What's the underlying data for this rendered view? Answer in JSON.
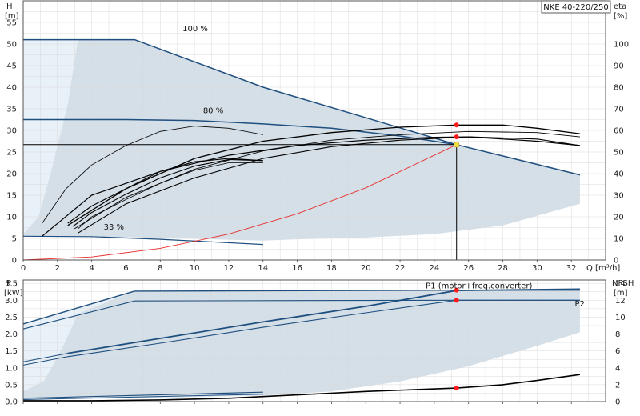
{
  "chart_data": [
    {
      "type": "line",
      "title": "NKE 40-220/250",
      "xlabel": "Q [m³/h]",
      "ylabel_left": [
        "H",
        "[m]"
      ],
      "ylabel_right": [
        "eta",
        "[%]"
      ],
      "xlim": [
        0,
        34
      ],
      "ylim_left": [
        0,
        60
      ],
      "ylim_right": [
        0,
        120
      ],
      "x_ticks": [
        0,
        2,
        4,
        6,
        8,
        10,
        12,
        14,
        16,
        18,
        20,
        22,
        24,
        26,
        28,
        30,
        32
      ],
      "y_ticks_left": [
        0,
        5,
        10,
        15,
        20,
        25,
        30,
        35,
        40,
        45,
        50,
        55
      ],
      "y_ticks_right": [
        0,
        10,
        20,
        30,
        40,
        50,
        60,
        70,
        80,
        90,
        100
      ],
      "grid": true,
      "operating_point": {
        "Q": 25.3,
        "H": 26.7
      },
      "curve_labels": [
        {
          "text": "100 %",
          "at": [
            9.3,
            53
          ]
        },
        {
          "text": "80 %",
          "at": [
            10.5,
            34
          ]
        },
        {
          "text": "33 %",
          "at": [
            4.7,
            7
          ]
        }
      ],
      "colors": {
        "envelope": "#cfdbe6",
        "curve_dark": "#1f4f7f",
        "system_curve": "#e8302c",
        "efficiency": "#000000",
        "marker": "#ff1a1a",
        "op_marker": "#f0e040"
      },
      "series": [
        {
          "axis": "left",
          "color": "#1f4f7f",
          "width": 1.5,
          "x": [
            0,
            6.5,
            14,
            25.3,
            32.5
          ],
          "y": [
            51,
            51,
            40,
            26.7,
            19.7
          ]
        },
        {
          "axis": "left",
          "color": "#1f4f7f",
          "width": 1.5,
          "x": [
            0,
            6,
            10,
            14,
            18,
            22,
            25.3
          ],
          "y": [
            32.5,
            32.5,
            32.3,
            31.5,
            30.5,
            28.7,
            26.7
          ]
        },
        {
          "axis": "left",
          "color": "#1f4f7f",
          "width": 1.2,
          "x": [
            0,
            4,
            8,
            14
          ],
          "y": [
            5.5,
            5.4,
            4.8,
            3.6
          ]
        },
        {
          "axis": "left",
          "color": "#000000",
          "width": 1.0,
          "x": [
            0,
            25.3
          ],
          "y": [
            26.7,
            26.7
          ]
        },
        {
          "axis": "left",
          "color": "#e8302c",
          "width": 0.9,
          "x": [
            0,
            4,
            8,
            12,
            16,
            20,
            25.3
          ],
          "y": [
            0,
            0.7,
            2.7,
            6.0,
            10.7,
            16.7,
            26.7
          ]
        },
        {
          "axis": "right",
          "color": "#000000",
          "width": 0.8,
          "x": [
            1.1,
            2.5,
            4,
            6,
            8,
            10,
            12,
            14
          ],
          "y": [
            17,
            33,
            44,
            53,
            59.5,
            62,
            61,
            58
          ]
        },
        {
          "axis": "right",
          "color": "#000000",
          "width": 1.1,
          "x": [
            2.6,
            4,
            6,
            8,
            10,
            12,
            14
          ],
          "y": [
            17,
            25,
            33,
            41,
            45.5,
            47,
            46
          ]
        },
        {
          "axis": "right",
          "color": "#000000",
          "width": 1.1,
          "x": [
            2.9,
            4,
            6,
            8,
            10,
            12,
            14
          ],
          "y": [
            15.5,
            22,
            30.5,
            38,
            43.5,
            46.5,
            46
          ]
        },
        {
          "axis": "right",
          "color": "#000000",
          "width": 0.8,
          "x": [
            3.2,
            4,
            6,
            8,
            10,
            12,
            14
          ],
          "y": [
            14.5,
            20,
            28,
            35.5,
            41.5,
            45,
            45
          ]
        },
        {
          "axis": "right",
          "color": "#000000",
          "width": 1.1,
          "x": [
            3.2,
            6,
            10,
            14,
            18,
            22,
            26,
            30,
            32.5
          ],
          "y": [
            12.5,
            26,
            38,
            47,
            52.5,
            55.5,
            57,
            56,
            53
          ]
        },
        {
          "axis": "right",
          "color": "#000000",
          "width": 0.9,
          "x": [
            3.0,
            6,
            10,
            14,
            18,
            22,
            26,
            30,
            32.5
          ],
          "y": [
            14.5,
            29,
            42,
            50.5,
            55.5,
            58,
            59.5,
            59,
            57
          ]
        },
        {
          "axis": "right",
          "color": "#000000",
          "width": 1.2,
          "x": [
            1.1,
            4,
            8,
            12,
            16,
            20,
            24,
            26,
            30,
            32.5
          ],
          "y": [
            11,
            30,
            41,
            48.5,
            53,
            55.5,
            56.8,
            57,
            55,
            53
          ]
        },
        {
          "axis": "right",
          "color": "#000000",
          "width": 1.3,
          "x": [
            2.6,
            6,
            10,
            14,
            18,
            22,
            25.3,
            28,
            30,
            32.5
          ],
          "y": [
            16,
            33,
            47,
            55,
            59,
            61.5,
            62.5,
            62.5,
            61,
            58.5
          ]
        }
      ],
      "markers": [
        {
          "x": 25.3,
          "y": 62.5,
          "axis": "right"
        },
        {
          "x": 25.3,
          "y": 57.0,
          "axis": "right"
        },
        {
          "x": 25.3,
          "y": 26.7,
          "axis": "left"
        }
      ]
    },
    {
      "type": "line",
      "xlabel": "",
      "ylabel_left": [
        "P",
        "[kW]"
      ],
      "ylabel_right": [
        "NPSH",
        "[m]"
      ],
      "xlim": [
        0,
        34
      ],
      "ylim_left": [
        0,
        3.6
      ],
      "ylim_right": [
        0,
        14.4
      ],
      "y_ticks_left": [
        0.0,
        0.5,
        1.0,
        1.5,
        2.0,
        2.5,
        3.0,
        3.5
      ],
      "y_ticks_right": [
        0,
        2,
        4,
        6,
        8,
        10,
        12,
        14
      ],
      "grid": true,
      "series_labels": [
        {
          "text": "P1 (motor+freq.converter)",
          "at": [
            23.5,
            3.35
          ]
        },
        {
          "text": "P2",
          "at": [
            32.2,
            2.82
          ]
        }
      ],
      "series": [
        {
          "name": "P1 (motor+freq.converter)",
          "axis": "left",
          "color": "#1f4f7f",
          "width": 1.4,
          "x": [
            0,
            6.5,
            25.3,
            32.5
          ],
          "y": [
            2.3,
            3.27,
            3.3,
            3.3
          ]
        },
        {
          "name": "P2",
          "axis": "left",
          "color": "#1f4f7f",
          "width": 1.1,
          "x": [
            0,
            6.5,
            25.3,
            32.5
          ],
          "y": [
            2.15,
            2.98,
            3.0,
            3.0
          ]
        },
        {
          "axis": "left",
          "color": "#1f4f7f",
          "width": 1.8,
          "x": [
            2.6,
            8,
            14,
            20,
            25.3,
            32.5
          ],
          "y": [
            1.43,
            1.87,
            2.36,
            2.82,
            3.29,
            3.33
          ]
        },
        {
          "axis": "left",
          "color": "#1f4f7f",
          "width": 1.1,
          "x": [
            2.6,
            8,
            14,
            20,
            25.3,
            32.5
          ],
          "y": [
            1.33,
            1.73,
            2.2,
            2.63,
            3.0,
            3.0
          ]
        },
        {
          "axis": "left",
          "color": "#1f4f7f",
          "width": 1.0,
          "x": [
            0,
            2.6
          ],
          "y": [
            1.18,
            1.43
          ]
        },
        {
          "axis": "left",
          "color": "#1f4f7f",
          "width": 1.0,
          "x": [
            0,
            2.6
          ],
          "y": [
            1.08,
            1.33
          ]
        },
        {
          "axis": "left",
          "color": "#1f4f7f",
          "width": 1.2,
          "x": [
            0,
            14
          ],
          "y": [
            0.1,
            0.28
          ]
        },
        {
          "axis": "left",
          "color": "#1f4f7f",
          "width": 1.0,
          "x": [
            0,
            14
          ],
          "y": [
            0.06,
            0.22
          ]
        },
        {
          "axis": "right",
          "color": "#000000",
          "width": 1.6,
          "x": [
            0,
            4,
            8,
            12,
            16,
            20,
            25.3,
            28,
            30,
            32.5
          ],
          "y": [
            0.1,
            0.1,
            0.2,
            0.4,
            0.8,
            1.2,
            1.6,
            2.0,
            2.5,
            3.2
          ]
        }
      ],
      "markers": [
        {
          "x": 25.3,
          "y": 3.3,
          "axis": "left"
        },
        {
          "x": 25.3,
          "y": 3.0,
          "axis": "left"
        },
        {
          "x": 25.3,
          "y": 1.6,
          "axis": "right"
        }
      ]
    }
  ]
}
